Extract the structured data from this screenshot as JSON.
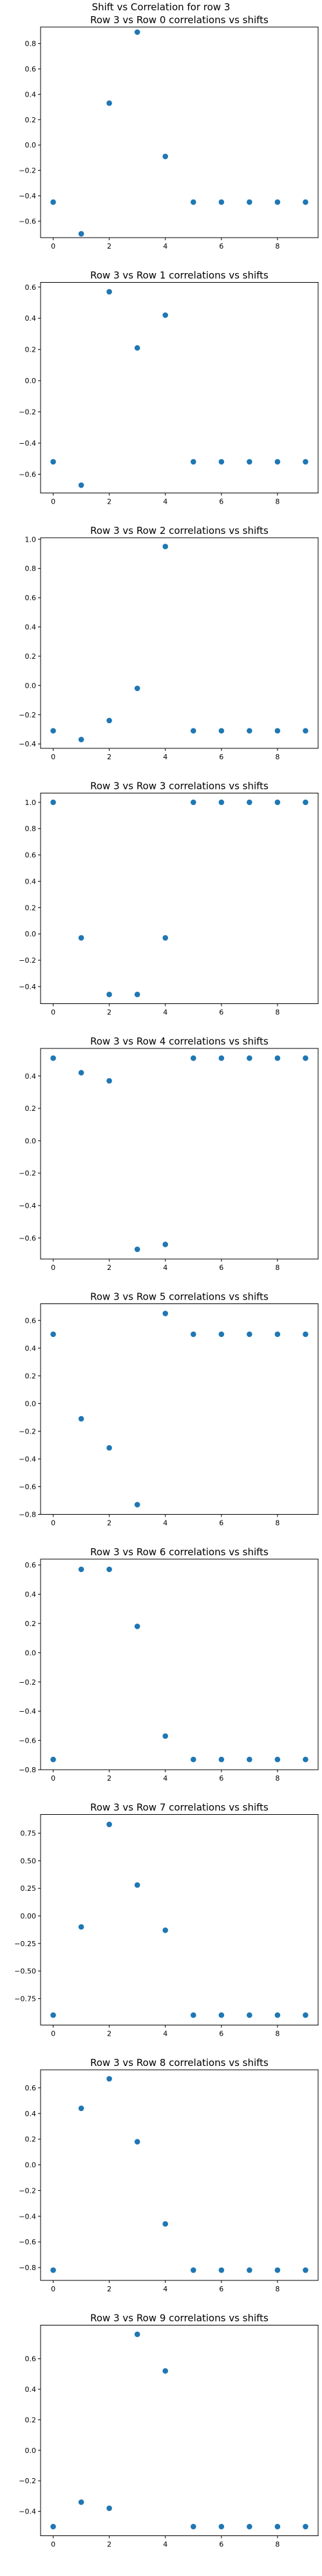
{
  "figure": {
    "suptitle": "Shift vs Correlation for row 3",
    "marker_color": "#1f77b4"
  },
  "chart_data": [
    {
      "type": "scatter",
      "title": "Row 3 vs Row 0 correlations vs shifts",
      "x": [
        0,
        1,
        2,
        3,
        4,
        5,
        6,
        7,
        8,
        9
      ],
      "y": [
        -0.45,
        -0.7,
        0.33,
        0.89,
        -0.09,
        -0.45,
        -0.45,
        -0.45,
        -0.45,
        -0.45
      ],
      "xlim": [
        -0.45,
        9.45
      ],
      "ylim": [
        -0.73,
        0.93
      ],
      "xticks": [
        0,
        2,
        4,
        6,
        8
      ],
      "yticks": [
        -0.6,
        -0.4,
        -0.2,
        0.0,
        0.2,
        0.4,
        0.6,
        0.8
      ],
      "grid": false
    },
    {
      "type": "scatter",
      "title": "Row 3 vs Row 1 correlations vs shifts",
      "x": [
        0,
        1,
        2,
        3,
        4,
        5,
        6,
        7,
        8,
        9
      ],
      "y": [
        -0.52,
        -0.67,
        0.57,
        0.21,
        0.42,
        -0.52,
        -0.52,
        -0.52,
        -0.52,
        -0.52
      ],
      "xlim": [
        -0.45,
        9.45
      ],
      "ylim": [
        -0.72,
        0.63
      ],
      "xticks": [
        0,
        2,
        4,
        6,
        8
      ],
      "yticks": [
        -0.6,
        -0.4,
        -0.2,
        0.0,
        0.2,
        0.4,
        0.6
      ],
      "grid": false
    },
    {
      "type": "scatter",
      "title": "Row 3 vs Row 2 correlations vs shifts",
      "x": [
        0,
        1,
        2,
        3,
        4,
        5,
        6,
        7,
        8,
        9
      ],
      "y": [
        -0.31,
        -0.37,
        -0.24,
        -0.02,
        0.95,
        -0.31,
        -0.31,
        -0.31,
        -0.31,
        -0.31
      ],
      "xlim": [
        -0.45,
        9.45
      ],
      "ylim": [
        -0.43,
        1.01
      ],
      "xticks": [
        0,
        2,
        4,
        6,
        8
      ],
      "yticks": [
        -0.4,
        -0.2,
        0.0,
        0.2,
        0.4,
        0.6,
        0.8,
        1.0
      ],
      "grid": false
    },
    {
      "type": "scatter",
      "title": "Row 3 vs Row 3 correlations vs shifts",
      "x": [
        0,
        1,
        2,
        3,
        4,
        5,
        6,
        7,
        8,
        9
      ],
      "y": [
        1.0,
        -0.03,
        -0.46,
        -0.46,
        -0.03,
        1.0,
        1.0,
        1.0,
        1.0,
        1.0
      ],
      "xlim": [
        -0.45,
        9.45
      ],
      "ylim": [
        -0.53,
        1.07
      ],
      "xticks": [
        0,
        2,
        4,
        6,
        8
      ],
      "yticks": [
        -0.4,
        -0.2,
        0.0,
        0.2,
        0.4,
        0.6,
        0.8,
        1.0
      ],
      "grid": false
    },
    {
      "type": "scatter",
      "title": "Row 3 vs Row 4 correlations vs shifts",
      "x": [
        0,
        1,
        2,
        3,
        4,
        5,
        6,
        7,
        8,
        9
      ],
      "y": [
        0.51,
        0.42,
        0.37,
        -0.67,
        -0.64,
        0.51,
        0.51,
        0.51,
        0.51,
        0.51
      ],
      "xlim": [
        -0.45,
        9.45
      ],
      "ylim": [
        -0.73,
        0.57
      ],
      "xticks": [
        0,
        2,
        4,
        6,
        8
      ],
      "yticks": [
        -0.6,
        -0.4,
        -0.2,
        0.0,
        0.2,
        0.4
      ],
      "grid": false
    },
    {
      "type": "scatter",
      "title": "Row 3 vs Row 5 correlations vs shifts",
      "x": [
        0,
        1,
        2,
        3,
        4,
        5,
        6,
        7,
        8,
        9
      ],
      "y": [
        0.5,
        -0.11,
        -0.32,
        -0.73,
        0.65,
        0.5,
        0.5,
        0.5,
        0.5,
        0.5
      ],
      "xlim": [
        -0.45,
        9.45
      ],
      "ylim": [
        -0.8,
        0.72
      ],
      "xticks": [
        0,
        2,
        4,
        6,
        8
      ],
      "yticks": [
        -0.8,
        -0.6,
        -0.4,
        -0.2,
        0.0,
        0.2,
        0.4,
        0.6
      ],
      "grid": false
    },
    {
      "type": "scatter",
      "title": "Row 3 vs Row 6 correlations vs shifts",
      "x": [
        0,
        1,
        2,
        3,
        4,
        5,
        6,
        7,
        8,
        9
      ],
      "y": [
        -0.73,
        0.57,
        0.57,
        0.18,
        -0.57,
        -0.73,
        -0.73,
        -0.73,
        -0.73,
        -0.73
      ],
      "xlim": [
        -0.45,
        9.45
      ],
      "ylim": [
        -0.8,
        0.64
      ],
      "xticks": [
        0,
        2,
        4,
        6,
        8
      ],
      "yticks": [
        -0.8,
        -0.6,
        -0.4,
        -0.2,
        0.0,
        0.2,
        0.4,
        0.6
      ],
      "grid": false
    },
    {
      "type": "scatter",
      "title": "Row 3 vs Row 7 correlations vs shifts",
      "x": [
        0,
        1,
        2,
        3,
        4,
        5,
        6,
        7,
        8,
        9
      ],
      "y": [
        -0.9,
        -0.1,
        0.83,
        0.28,
        -0.13,
        -0.9,
        -0.9,
        -0.9,
        -0.9,
        -0.9
      ],
      "xlim": [
        -0.45,
        9.45
      ],
      "ylim": [
        -0.99,
        0.92
      ],
      "xticks": [
        0,
        2,
        4,
        6,
        8
      ],
      "yticks": [
        -0.75,
        -0.5,
        -0.25,
        0.0,
        0.25,
        0.5,
        0.75
      ],
      "yticklabels": [
        "−0.75",
        "−0.50",
        "−0.25",
        "0.00",
        "0.25",
        "0.50",
        "0.75"
      ],
      "grid": false
    },
    {
      "type": "scatter",
      "title": "Row 3 vs Row 8 correlations vs shifts",
      "x": [
        0,
        1,
        2,
        3,
        4,
        5,
        6,
        7,
        8,
        9
      ],
      "y": [
        -0.82,
        0.44,
        0.67,
        0.18,
        -0.46,
        -0.82,
        -0.82,
        -0.82,
        -0.82,
        -0.82
      ],
      "xlim": [
        -0.45,
        9.45
      ],
      "ylim": [
        -0.9,
        0.74
      ],
      "xticks": [
        0,
        2,
        4,
        6,
        8
      ],
      "yticks": [
        -0.8,
        -0.6,
        -0.4,
        -0.2,
        0.0,
        0.2,
        0.4,
        0.6
      ],
      "grid": false
    },
    {
      "type": "scatter",
      "title": "Row 3 vs Row 9 correlations vs shifts",
      "x": [
        0,
        1,
        2,
        3,
        4,
        5,
        6,
        7,
        8,
        9
      ],
      "y": [
        -0.5,
        -0.34,
        -0.38,
        0.76,
        0.52,
        -0.5,
        -0.5,
        -0.5,
        -0.5,
        -0.5
      ],
      "xlim": [
        -0.45,
        9.45
      ],
      "ylim": [
        -0.56,
        0.82
      ],
      "xticks": [
        0,
        2,
        4,
        6,
        8
      ],
      "yticks": [
        -0.4,
        -0.2,
        0.0,
        0.2,
        0.4,
        0.6
      ],
      "grid": false
    }
  ]
}
